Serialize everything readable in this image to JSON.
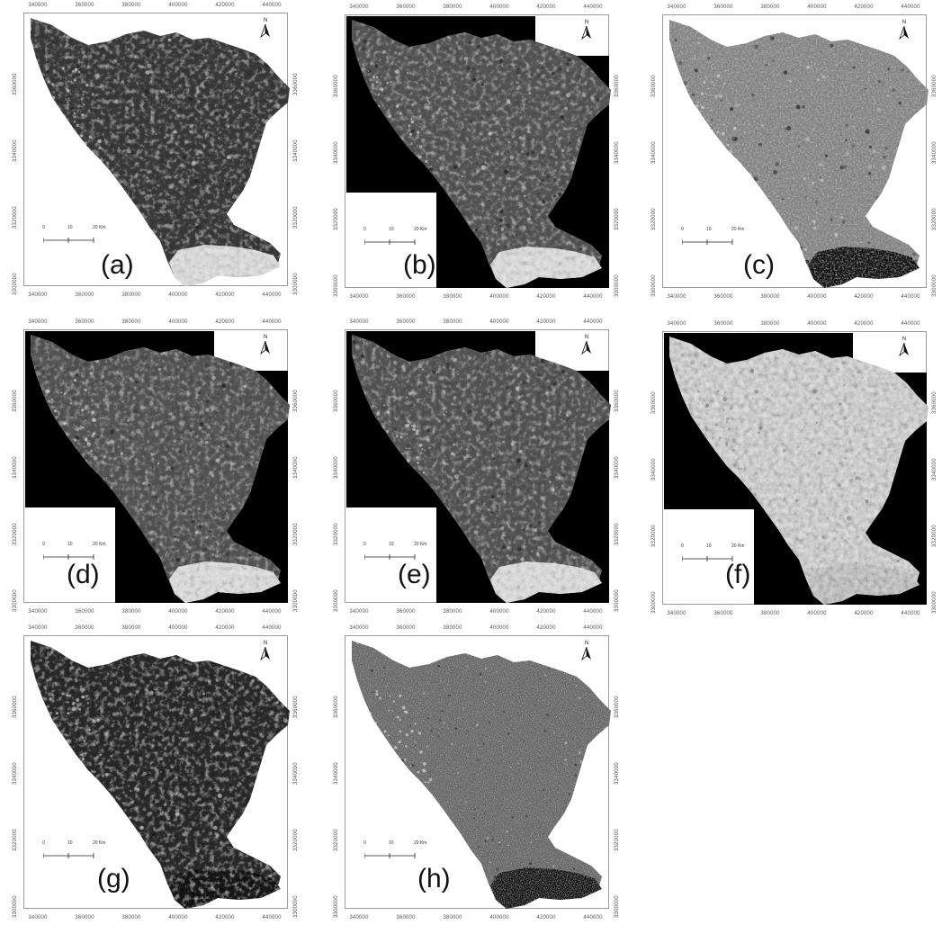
{
  "figure": {
    "panels": [
      {
        "id": "a",
        "label": "(a)",
        "tone": "dark",
        "black_bg": false,
        "south_dark": false,
        "bottom_bright": true
      },
      {
        "id": "b",
        "label": "(b)",
        "tone": "mid",
        "black_bg": true,
        "south_dark": false,
        "bottom_bright": true
      },
      {
        "id": "c",
        "label": "(c)",
        "tone": "light",
        "black_bg": false,
        "south_dark": true,
        "bottom_bright": false
      },
      {
        "id": "d",
        "label": "(d)",
        "tone": "mid",
        "black_bg": true,
        "south_dark": false,
        "bottom_bright": true
      },
      {
        "id": "e",
        "label": "(e)",
        "tone": "mid",
        "black_bg": true,
        "south_dark": false,
        "bottom_bright": true
      },
      {
        "id": "f",
        "label": "(f)",
        "tone": "bright",
        "black_bg": true,
        "south_dark": false,
        "bottom_bright": true
      },
      {
        "id": "g",
        "label": "(g)",
        "tone": "darker",
        "black_bg": false,
        "south_dark": true,
        "bottom_bright": false
      },
      {
        "id": "h",
        "label": "(h)",
        "tone": "grain",
        "black_bg": false,
        "south_dark": true,
        "bottom_bright": false
      }
    ],
    "easting_ticks": [
      "340000",
      "360000",
      "380000",
      "400000",
      "420000",
      "440000"
    ],
    "northing_ticks": [
      "3360000",
      "3340000",
      "3320000",
      "3300000"
    ],
    "north_letter": "N",
    "scale_labels": [
      "0",
      "10",
      "20 Km"
    ],
    "colors": {
      "dark": "#3a3a3a",
      "mid": "#555555",
      "light": "#8a8a8a",
      "bright": "#e6e6e6",
      "darker": "#2a2a2a",
      "grain": "#6c6c6c",
      "background_black": "#000000"
    }
  }
}
